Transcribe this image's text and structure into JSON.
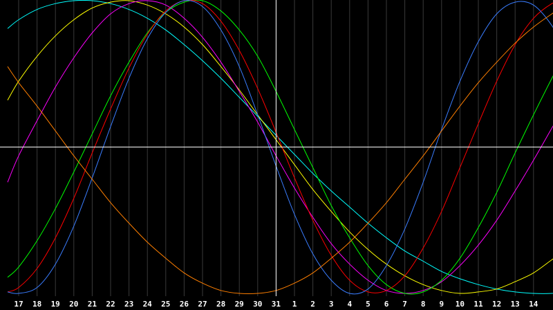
{
  "chart_data": {
    "type": "line",
    "title": "",
    "xlabel": "",
    "ylabel": "",
    "grid": true,
    "background": "#000000",
    "grid_color": "#3a3a3a",
    "axis_color": "#ffffff",
    "tick_labels": [
      "17",
      "18",
      "19",
      "20",
      "21",
      "22",
      "23",
      "24",
      "25",
      "26",
      "27",
      "28",
      "29",
      "30",
      "31",
      "1",
      "2",
      "3",
      "4",
      "5",
      "6",
      "7",
      "8",
      "9",
      "10",
      "11",
      "12",
      "13",
      "14"
    ],
    "current_day_index": 14,
    "x_range": [
      -0.6,
      29.6
    ],
    "ylim": [
      -1,
      1
    ],
    "series": [
      {
        "color": "#00ffff",
        "x": [
          -0.6,
          0,
          1,
          2,
          3,
          4,
          5,
          6,
          7,
          8,
          9,
          10,
          11,
          12,
          13,
          14,
          15,
          16,
          17,
          18,
          19,
          20,
          21,
          22,
          23,
          24,
          25,
          26,
          27,
          28,
          29,
          29.6
        ],
        "y": [
          0.81,
          0.87,
          0.94,
          0.98,
          1.0,
          1.0,
          0.98,
          0.94,
          0.88,
          0.8,
          0.7,
          0.59,
          0.47,
          0.34,
          0.21,
          0.08,
          -0.05,
          -0.18,
          -0.3,
          -0.41,
          -0.52,
          -0.62,
          -0.71,
          -0.78,
          -0.85,
          -0.9,
          -0.94,
          -0.97,
          -0.99,
          -1.0,
          -1.0,
          -0.99
        ]
      },
      {
        "color": "#ffff00",
        "x": [
          -0.6,
          0,
          1,
          2,
          3,
          4,
          5,
          6,
          7,
          8,
          9,
          10,
          11,
          12,
          13,
          14,
          15,
          16,
          17,
          18,
          19,
          20,
          21,
          22,
          23,
          24,
          25,
          26,
          27,
          28,
          29,
          29.6
        ],
        "y": [
          0.32,
          0.45,
          0.62,
          0.76,
          0.87,
          0.95,
          0.99,
          1.0,
          0.97,
          0.91,
          0.82,
          0.7,
          0.55,
          0.39,
          0.22,
          0.05,
          -0.12,
          -0.29,
          -0.44,
          -0.58,
          -0.7,
          -0.8,
          -0.88,
          -0.94,
          -0.98,
          -1.0,
          -0.99,
          -0.97,
          -0.92,
          -0.86,
          -0.77,
          -0.72
        ]
      },
      {
        "color": "#ff00ff",
        "x": [
          -0.6,
          0,
          1,
          2,
          3,
          4,
          5,
          6,
          7,
          8,
          9,
          10,
          11,
          12,
          13,
          14,
          15,
          16,
          17,
          18,
          19,
          20,
          21,
          22,
          23,
          24,
          25,
          26,
          27,
          28,
          29,
          29.6
        ],
        "y": [
          -0.24,
          -0.06,
          0.18,
          0.41,
          0.61,
          0.78,
          0.91,
          0.98,
          1.0,
          0.97,
          0.88,
          0.75,
          0.58,
          0.38,
          0.17,
          -0.06,
          -0.28,
          -0.48,
          -0.66,
          -0.8,
          -0.91,
          -0.98,
          -1.0,
          -0.98,
          -0.92,
          -0.81,
          -0.67,
          -0.5,
          -0.3,
          -0.09,
          0.13,
          0.26
        ]
      },
      {
        "color": "#00ff00",
        "x": [
          -0.6,
          0,
          1,
          2,
          3,
          4,
          5,
          6,
          7,
          8,
          9,
          10,
          11,
          12,
          13,
          14,
          15,
          16,
          17,
          18,
          19,
          20,
          21,
          22,
          23,
          24,
          25,
          26,
          27,
          28,
          29,
          29.6
        ],
        "y": [
          -0.89,
          -0.82,
          -0.64,
          -0.42,
          -0.17,
          0.09,
          0.35,
          0.58,
          0.78,
          0.92,
          0.99,
          1.0,
          0.93,
          0.8,
          0.62,
          0.38,
          0.12,
          -0.14,
          -0.4,
          -0.62,
          -0.81,
          -0.94,
          -1.0,
          -0.99,
          -0.91,
          -0.76,
          -0.55,
          -0.31,
          -0.04,
          0.22,
          0.47,
          0.61
        ]
      },
      {
        "color": "#ff0000",
        "x": [
          -0.6,
          0,
          1,
          2,
          3,
          4,
          5,
          6,
          7,
          8,
          9,
          10,
          11,
          12,
          13,
          14,
          15,
          16,
          17,
          18,
          19,
          20,
          21,
          22,
          23,
          24,
          25,
          26,
          27,
          28,
          29,
          29.6
        ],
        "y": [
          -0.99,
          -0.96,
          -0.83,
          -0.62,
          -0.35,
          -0.04,
          0.26,
          0.54,
          0.77,
          0.93,
          1.0,
          0.98,
          0.86,
          0.66,
          0.4,
          0.1,
          -0.21,
          -0.5,
          -0.74,
          -0.91,
          -0.99,
          -0.98,
          -0.88,
          -0.69,
          -0.44,
          -0.14,
          0.16,
          0.45,
          0.7,
          0.88,
          0.98,
          1.0
        ]
      },
      {
        "color": "#3a7dff",
        "x": [
          -0.6,
          0,
          1,
          2,
          3,
          4,
          5,
          6,
          7,
          8,
          9,
          10,
          11,
          12,
          13,
          14,
          15,
          16,
          17,
          18,
          19,
          20,
          21,
          22,
          23,
          24,
          25,
          26,
          27,
          28,
          29,
          29.6
        ],
        "y": [
          -0.99,
          -1.0,
          -0.96,
          -0.8,
          -0.54,
          -0.21,
          0.14,
          0.47,
          0.74,
          0.92,
          1.0,
          0.96,
          0.8,
          0.55,
          0.22,
          -0.13,
          -0.46,
          -0.73,
          -0.91,
          -1.0,
          -0.97,
          -0.81,
          -0.56,
          -0.24,
          0.12,
          0.45,
          0.72,
          0.91,
          0.99,
          0.97,
          0.83,
          0.68
        ]
      },
      {
        "color": "#ff7f00",
        "x": [
          -0.6,
          0,
          1,
          2,
          3,
          4,
          5,
          6,
          7,
          8,
          9,
          10,
          11,
          12,
          13,
          14,
          15,
          16,
          17,
          18,
          19,
          20,
          21,
          22,
          23,
          24,
          25,
          26,
          27,
          28,
          29,
          29.6
        ],
        "y": [
          0.55,
          0.44,
          0.28,
          0.11,
          -0.06,
          -0.22,
          -0.38,
          -0.52,
          -0.65,
          -0.76,
          -0.86,
          -0.93,
          -0.98,
          -1.0,
          -1.0,
          -0.98,
          -0.93,
          -0.86,
          -0.76,
          -0.65,
          -0.52,
          -0.38,
          -0.22,
          -0.06,
          0.11,
          0.28,
          0.44,
          0.58,
          0.71,
          0.82,
          0.91,
          0.96
        ]
      }
    ]
  }
}
